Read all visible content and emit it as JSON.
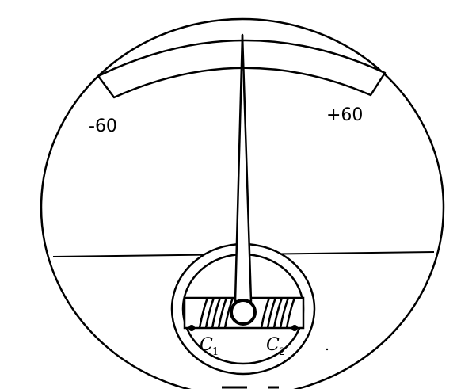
{
  "scale": {
    "min_label": "-60",
    "max_label": "+60",
    "pointer_value": 0
  },
  "coils": {
    "left": {
      "letter": "C",
      "subscript": "1"
    },
    "right": {
      "letter": "C",
      "subscript": "2"
    }
  },
  "colors": {
    "ink": "#000000",
    "paper": "#ffffff"
  }
}
